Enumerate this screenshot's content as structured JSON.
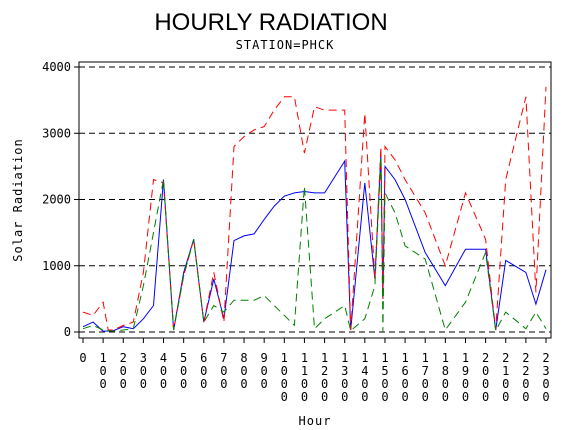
{
  "chart_data": {
    "type": "line",
    "title": "HOURLY RADIATION",
    "subtitle": "STATION=PHCK",
    "xlabel": "Hour",
    "ylabel": "Solar Radiation",
    "ylim": [
      0,
      4000
    ],
    "yticks": [
      0,
      1000,
      2000,
      3000,
      4000
    ],
    "grid": "horizontal dashed at y ticks",
    "legend": "none",
    "categories": [
      "0",
      "100",
      "200",
      "300",
      "400",
      "500",
      "600",
      "700",
      "800",
      "900",
      "1000",
      "1100",
      "1200",
      "1300",
      "1400",
      "1500",
      "1600",
      "1700",
      "1800",
      "1900",
      "2000",
      "2100",
      "2200",
      "2300"
    ],
    "series": [
      {
        "color": "#0000ff",
        "dash": "solid",
        "points": [
          [
            0,
            80
          ],
          [
            50,
            150
          ],
          [
            100,
            10
          ],
          [
            150,
            20
          ],
          [
            200,
            80
          ],
          [
            250,
            50
          ],
          [
            300,
            200
          ],
          [
            350,
            400
          ],
          [
            400,
            2300
          ],
          [
            450,
            30
          ],
          [
            500,
            900
          ],
          [
            550,
            1400
          ],
          [
            600,
            150
          ],
          [
            650,
            800
          ],
          [
            700,
            200
          ],
          [
            750,
            1380
          ],
          [
            800,
            1450
          ],
          [
            850,
            1480
          ],
          [
            900,
            1700
          ],
          [
            950,
            1900
          ],
          [
            1000,
            2050
          ],
          [
            1050,
            2100
          ],
          [
            1100,
            2120
          ],
          [
            1150,
            2100
          ],
          [
            1200,
            2100
          ],
          [
            1300,
            2580
          ],
          [
            1330,
            30
          ],
          [
            1400,
            2250
          ],
          [
            1450,
            800
          ],
          [
            1480,
            2700
          ],
          [
            1490,
            500
          ],
          [
            1500,
            2500
          ],
          [
            1550,
            2300
          ],
          [
            1600,
            2000
          ],
          [
            1700,
            1200
          ],
          [
            1800,
            700
          ],
          [
            1900,
            1250
          ],
          [
            2000,
            1250
          ],
          [
            2050,
            30
          ],
          [
            2100,
            1080
          ],
          [
            2200,
            900
          ],
          [
            2250,
            420
          ],
          [
            2300,
            940
          ]
        ]
      },
      {
        "color": "#ff0000",
        "dash": "dashed",
        "points": [
          [
            0,
            300
          ],
          [
            50,
            250
          ],
          [
            100,
            450
          ],
          [
            125,
            30
          ],
          [
            150,
            30
          ],
          [
            200,
            100
          ],
          [
            250,
            150
          ],
          [
            300,
            900
          ],
          [
            350,
            2300
          ],
          [
            400,
            2250
          ],
          [
            450,
            30
          ],
          [
            500,
            850
          ],
          [
            550,
            1400
          ],
          [
            600,
            150
          ],
          [
            650,
            900
          ],
          [
            700,
            150
          ],
          [
            750,
            2800
          ],
          [
            800,
            2950
          ],
          [
            850,
            3050
          ],
          [
            900,
            3100
          ],
          [
            950,
            3350
          ],
          [
            1000,
            3550
          ],
          [
            1050,
            3550
          ],
          [
            1100,
            2700
          ],
          [
            1150,
            3400
          ],
          [
            1200,
            3350
          ],
          [
            1300,
            3350
          ],
          [
            1330,
            30
          ],
          [
            1400,
            3300
          ],
          [
            1450,
            800
          ],
          [
            1480,
            2800
          ],
          [
            1490,
            500
          ],
          [
            1500,
            2800
          ],
          [
            1550,
            2600
          ],
          [
            1600,
            2300
          ],
          [
            1700,
            1800
          ],
          [
            1800,
            1000
          ],
          [
            1900,
            2100
          ],
          [
            2000,
            1400
          ],
          [
            2050,
            30
          ],
          [
            2100,
            2300
          ],
          [
            2200,
            3550
          ],
          [
            2250,
            600
          ],
          [
            2300,
            3700
          ]
        ]
      },
      {
        "color": "#008000",
        "dash": "dashed",
        "points": [
          [
            0,
            50
          ],
          [
            50,
            100
          ],
          [
            100,
            30
          ],
          [
            150,
            10
          ],
          [
            200,
            30
          ],
          [
            250,
            50
          ],
          [
            300,
            700
          ],
          [
            350,
            1500
          ],
          [
            400,
            2300
          ],
          [
            450,
            30
          ],
          [
            500,
            850
          ],
          [
            550,
            1400
          ],
          [
            600,
            150
          ],
          [
            650,
            400
          ],
          [
            700,
            300
          ],
          [
            750,
            480
          ],
          [
            800,
            480
          ],
          [
            850,
            480
          ],
          [
            900,
            550
          ],
          [
            950,
            400
          ],
          [
            1000,
            250
          ],
          [
            1050,
            100
          ],
          [
            1100,
            2200
          ],
          [
            1150,
            50
          ],
          [
            1200,
            200
          ],
          [
            1300,
            400
          ],
          [
            1330,
            20
          ],
          [
            1400,
            200
          ],
          [
            1450,
            700
          ],
          [
            1480,
            2650
          ],
          [
            1490,
            10
          ],
          [
            1500,
            2100
          ],
          [
            1550,
            1800
          ],
          [
            1600,
            1300
          ],
          [
            1700,
            1100
          ],
          [
            1800,
            30
          ],
          [
            1900,
            450
          ],
          [
            2000,
            1200
          ],
          [
            2050,
            20
          ],
          [
            2100,
            300
          ],
          [
            2200,
            50
          ],
          [
            2250,
            300
          ],
          [
            2300,
            50
          ]
        ]
      }
    ]
  }
}
